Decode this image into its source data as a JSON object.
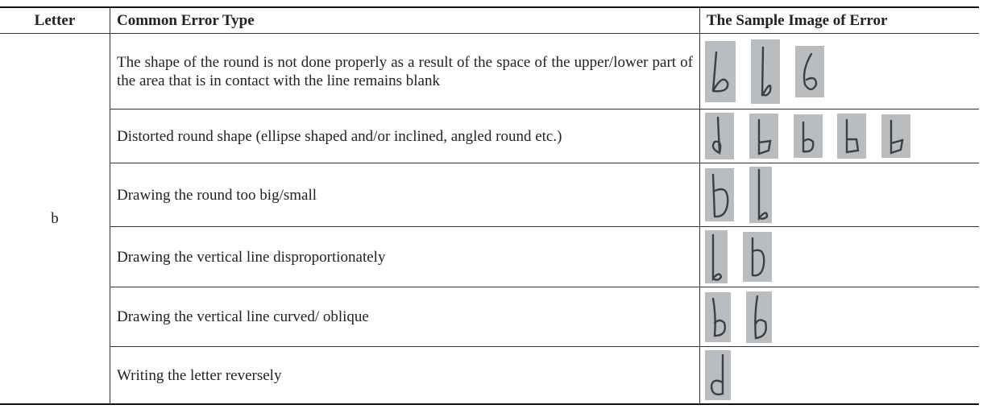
{
  "table": {
    "header": [
      "Letter",
      "Common Error Type",
      "The Sample Image of Error"
    ],
    "letter": "b",
    "rows": [
      "The shape of the round is not done properly as a result of the space of the upper/lower part of the area that is in contact with the line remains blank",
      "Distorted round shape (ellipse shaped and/or inclined, angled round etc.)",
      "Drawing the round too big/small",
      "Drawing the vertical line disproportionately",
      "Drawing the vertical line curved/ oblique",
      "Writing the letter reversely"
    ]
  }
}
